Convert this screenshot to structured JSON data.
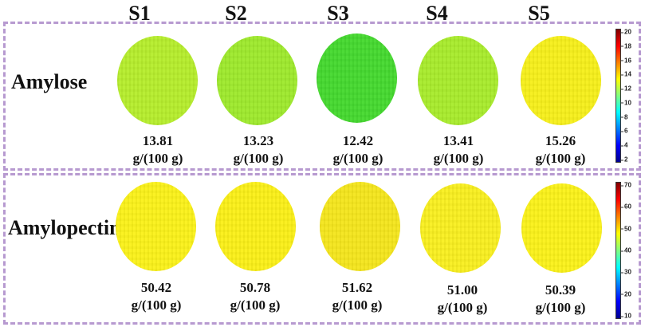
{
  "columns": [
    "S1",
    "S2",
    "S3",
    "S4",
    "S5"
  ],
  "rows": [
    {
      "label": "Amylose",
      "values": [
        {
          "value": "13.81",
          "unit": "g/(100 g)",
          "color": "#b6ee2c"
        },
        {
          "value": "13.23",
          "unit": "g/(100 g)",
          "color": "#9eea2c"
        },
        {
          "value": "12.42",
          "unit": "g/(100 g)",
          "color": "#44d92e"
        },
        {
          "value": "13.41",
          "unit": "g/(100 g)",
          "color": "#a8ec2b"
        },
        {
          "value": "15.26",
          "unit": "g/(100 g)",
          "color": "#f7f01a"
        }
      ],
      "colorbar_ticks": [
        "20",
        "18",
        "16",
        "14",
        "12",
        "10",
        "8",
        "6",
        "4",
        "2"
      ]
    },
    {
      "label": "Amylopectin",
      "values": [
        {
          "value": "50.42",
          "unit": "g/(100 g)",
          "color": "#fbf219"
        },
        {
          "value": "50.78",
          "unit": "g/(100 g)",
          "color": "#fbf017"
        },
        {
          "value": "51.62",
          "unit": "g/(100 g)",
          "color": "#f5e61c"
        },
        {
          "value": "51.00",
          "unit": "g/(100 g)",
          "color": "#f9ef1f"
        },
        {
          "value": "50.39",
          "unit": "g/(100 g)",
          "color": "#fbf219"
        }
      ],
      "colorbar_ticks": [
        "70",
        "60",
        "50",
        "40",
        "30",
        "20",
        "10"
      ]
    }
  ],
  "colors": {
    "border": "#b79ad0",
    "colormap": [
      "#00008f",
      "#0000ff",
      "#0080ff",
      "#00ffff",
      "#80ff80",
      "#ffff00",
      "#ff8000",
      "#ff0000",
      "#800000"
    ]
  }
}
